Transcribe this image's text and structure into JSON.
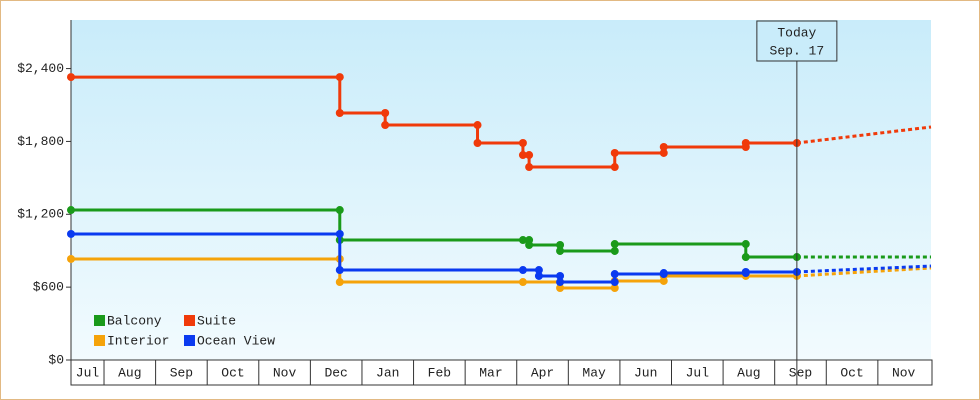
{
  "chart_data": {
    "type": "line",
    "step": true,
    "ylim": [
      0,
      2800
    ],
    "yticks": [
      {
        "value": 0,
        "label": "$0"
      },
      {
        "value": 600,
        "label": "$600"
      },
      {
        "value": 1200,
        "label": "$1,200"
      },
      {
        "value": 1800,
        "label": "$1,800"
      },
      {
        "value": 2400,
        "label": "$2,400"
      }
    ],
    "xlim": [
      0.36,
      17.03
    ],
    "xticks": [
      {
        "value": 0.5,
        "label": "Jul"
      },
      {
        "value": 1.5,
        "label": "Aug"
      },
      {
        "value": 2.5,
        "label": "Sep"
      },
      {
        "value": 3.5,
        "label": "Oct"
      },
      {
        "value": 4.5,
        "label": "Nov"
      },
      {
        "value": 5.5,
        "label": "Dec"
      },
      {
        "value": 6.5,
        "label": "Jan"
      },
      {
        "value": 7.5,
        "label": "Feb"
      },
      {
        "value": 8.5,
        "label": "Mar"
      },
      {
        "value": 9.5,
        "label": "Apr"
      },
      {
        "value": 10.5,
        "label": "May"
      },
      {
        "value": 11.5,
        "label": "Jun"
      },
      {
        "value": 12.5,
        "label": "Jul"
      },
      {
        "value": 13.5,
        "label": "Aug"
      },
      {
        "value": 14.5,
        "label": "Sep"
      },
      {
        "value": 15.5,
        "label": "Oct"
      },
      {
        "value": 16.5,
        "label": "Nov"
      }
    ],
    "legend": "bottom-left",
    "today": {
      "x": 14.43,
      "label": [
        "Today",
        "Sep. 17"
      ]
    },
    "series": [
      {
        "name": "Balcony",
        "color": "#1a9a1a",
        "x": [
          0.36,
          5.57,
          5.57,
          9.12,
          9.24,
          9.24,
          9.84,
          9.84,
          10.9,
          10.9,
          13.44,
          13.44,
          14.43
        ],
        "values": [
          1235,
          1235,
          988,
          988,
          988,
          947,
          947,
          898,
          898,
          955,
          955,
          848,
          848
        ],
        "forecast": {
          "x": [
            14.43,
            17.03
          ],
          "values": [
            848,
            848
          ]
        }
      },
      {
        "name": "Suite",
        "color": "#f03a0a",
        "x": [
          0.36,
          5.57,
          5.57,
          6.45,
          6.45,
          8.24,
          8.24,
          9.12,
          9.12,
          9.24,
          9.24,
          10.9,
          10.9,
          11.85,
          11.85,
          13.44,
          13.44,
          14.43
        ],
        "values": [
          2330,
          2330,
          2034,
          2034,
          1935,
          1935,
          1787,
          1787,
          1688,
          1688,
          1589,
          1589,
          1705,
          1705,
          1754,
          1754,
          1787,
          1787
        ],
        "forecast": {
          "x": [
            14.43,
            17.03
          ],
          "values": [
            1787,
            1919
          ]
        }
      },
      {
        "name": "Interior",
        "color": "#f5a30a",
        "x": [
          0.36,
          5.57,
          5.57,
          9.12,
          9.84,
          9.84,
          10.9,
          10.9,
          11.85,
          11.85,
          13.44,
          14.43
        ],
        "values": [
          832,
          832,
          642,
          642,
          642,
          593,
          593,
          651,
          651,
          692,
          692,
          692
        ],
        "forecast": {
          "x": [
            14.43,
            17.03
          ],
          "values": [
            692,
            758
          ]
        }
      },
      {
        "name": "Ocean View",
        "color": "#0a3af0",
        "x": [
          0.36,
          5.57,
          5.57,
          9.12,
          9.43,
          9.43,
          9.84,
          9.84,
          10.9,
          10.9,
          11.85,
          11.85,
          13.44,
          13.44,
          14.43
        ],
        "values": [
          1038,
          1038,
          741,
          741,
          741,
          692,
          692,
          642,
          642,
          708,
          708,
          716,
          716,
          725,
          725
        ],
        "forecast": {
          "x": [
            14.43,
            17.03
          ],
          "values": [
            725,
            774
          ]
        }
      }
    ]
  }
}
